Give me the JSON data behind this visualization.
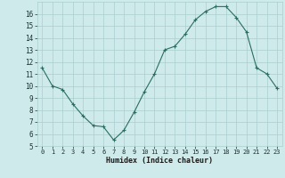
{
  "x": [
    0,
    1,
    2,
    3,
    4,
    5,
    6,
    7,
    8,
    9,
    10,
    11,
    12,
    13,
    14,
    15,
    16,
    17,
    18,
    19,
    20,
    21,
    22,
    23
  ],
  "y": [
    11.5,
    10.0,
    9.7,
    8.5,
    7.5,
    6.7,
    6.6,
    5.5,
    6.3,
    7.8,
    9.5,
    11.0,
    13.0,
    13.3,
    14.3,
    15.5,
    16.2,
    16.6,
    16.6,
    15.7,
    14.5,
    11.5,
    11.0,
    9.8
  ],
  "line_color": "#2a6e62",
  "marker": "+",
  "marker_size": 3,
  "background_color": "#ceeaea",
  "grid_color": "#aacece",
  "xlabel": "Humidex (Indice chaleur)",
  "ylim": [
    5,
    17
  ],
  "xlim": [
    -0.5,
    23.5
  ],
  "yticks": [
    5,
    6,
    7,
    8,
    9,
    10,
    11,
    12,
    13,
    14,
    15,
    16
  ],
  "xticks": [
    0,
    1,
    2,
    3,
    4,
    5,
    6,
    7,
    8,
    9,
    10,
    11,
    12,
    13,
    14,
    15,
    16,
    17,
    18,
    19,
    20,
    21,
    22,
    23
  ],
  "xlabel_fontsize": 6.0,
  "tick_fontsize": 5.0,
  "line_width": 0.8,
  "marker_edge_width": 0.8
}
